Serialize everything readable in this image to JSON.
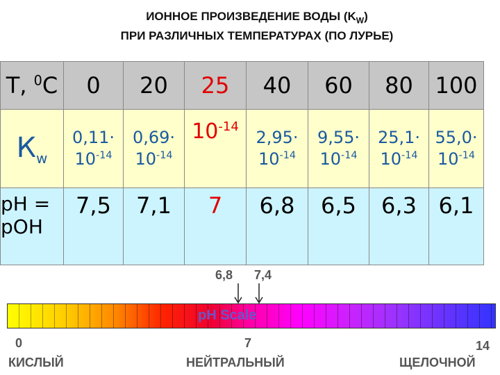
{
  "title": {
    "line1": "ИОННОЕ ПРОИЗВЕДЕНИЕ ВОДЫ (K",
    "line1_sub": "W",
    "line1_end": ")",
    "line2": "ПРИ РАЗЛИЧНЫХ ТЕМПЕРАТУРАХ (ПО ЛУРЬЕ)"
  },
  "table": {
    "header": {
      "label": {
        "before": "Т, ",
        "sup": "0",
        "after": "С"
      },
      "temps": [
        "0",
        "20",
        "25",
        "40",
        "60",
        "80",
        "100"
      ]
    },
    "kw": {
      "label": {
        "base": "К",
        "sub": "w"
      },
      "cells": [
        {
          "mantissa": "0,11·",
          "base": "10",
          "exp": "-14"
        },
        {
          "mantissa": "0,69·",
          "base": "10",
          "exp": "-14"
        },
        {
          "base": "10",
          "exp": "-14"
        },
        {
          "mantissa": "2,95·",
          "base": "10",
          "exp": "-14"
        },
        {
          "mantissa": "9,55·",
          "base": "10",
          "exp": "-14"
        },
        {
          "mantissa": "25,1·",
          "base": "10",
          "exp": "-14"
        },
        {
          "mantissa": "55,0·",
          "base": "10",
          "exp": "-14"
        }
      ]
    },
    "ph": {
      "label_line1": "pH =",
      "label_line2": "pOH",
      "values": [
        "7,5",
        "7,1",
        "7",
        "6,8",
        "6,5",
        "6,3",
        "6,1"
      ]
    }
  },
  "scale": {
    "marker1": "6,8",
    "marker2": "7,4",
    "caption": "pH Scale",
    "min": "0",
    "mid": "7",
    "max": "14",
    "acid": "КИСЛЫЙ",
    "neutral": "НЕЙТРАЛЬНЫЙ",
    "alkaline": "ЩЕЛОЧНОЙ"
  }
}
